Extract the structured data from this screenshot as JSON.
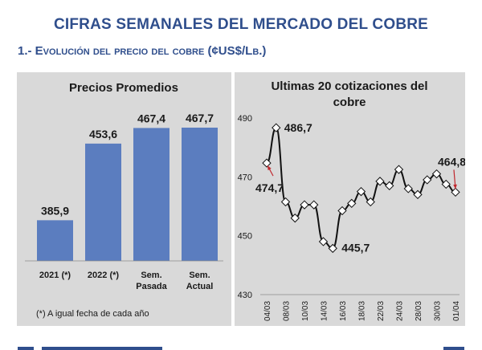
{
  "title": "CIFRAS SEMANALES DEL MERCADO DEL COBRE",
  "section": "1.- Evolución del precio del cobre (¢US$/Lb.)",
  "colors": {
    "title": "#2f4e8c",
    "bar": "#5b7dbf",
    "panel": "#d9d9d9",
    "arrow": "#c0272d"
  },
  "chart_data": [
    {
      "type": "bar",
      "title": "Precios Promedios",
      "categories": [
        "2021 (*)",
        "2022 (*)",
        "Sem.\nPasada",
        "Sem.\nActual"
      ],
      "values": [
        385.9,
        453.6,
        467.4,
        467.7
      ],
      "value_labels": [
        "385,9",
        "453,6",
        "467,4",
        "467,7"
      ],
      "footnote": "(*) A igual fecha de cada año"
    },
    {
      "type": "line",
      "title": "Ultimas 20 cotizaciones del cobre",
      "x": [
        "04/03",
        "07/03",
        "08/03",
        "09/03",
        "10/03",
        "11/03",
        "14/03",
        "15/03",
        "16/03",
        "17/03",
        "18/03",
        "21/03",
        "22/03",
        "23/03",
        "24/03",
        "25/03",
        "28/03",
        "29/03",
        "30/03",
        "31/03",
        "01/04"
      ],
      "x_tick_labels": [
        "04/03",
        "08/03",
        "10/03",
        "14/03",
        "16/03",
        "18/03",
        "22/03",
        "24/03",
        "28/03",
        "30/03",
        "01/04"
      ],
      "y": [
        474.7,
        486.7,
        461.5,
        456.0,
        460.5,
        460.5,
        448.0,
        445.7,
        458.5,
        461.0,
        465.0,
        461.5,
        468.5,
        467.0,
        472.5,
        466.0,
        464.0,
        469.0,
        471.0,
        467.5,
        464.8
      ],
      "ylim": [
        430,
        490
      ],
      "yticks": [
        430,
        450,
        470,
        490
      ],
      "annotations": [
        {
          "label": "486,7",
          "index": 1
        },
        {
          "label": "474,7",
          "index": 0
        },
        {
          "label": "445,7",
          "index": 7
        },
        {
          "label": "464,8",
          "index": 20
        }
      ]
    }
  ]
}
